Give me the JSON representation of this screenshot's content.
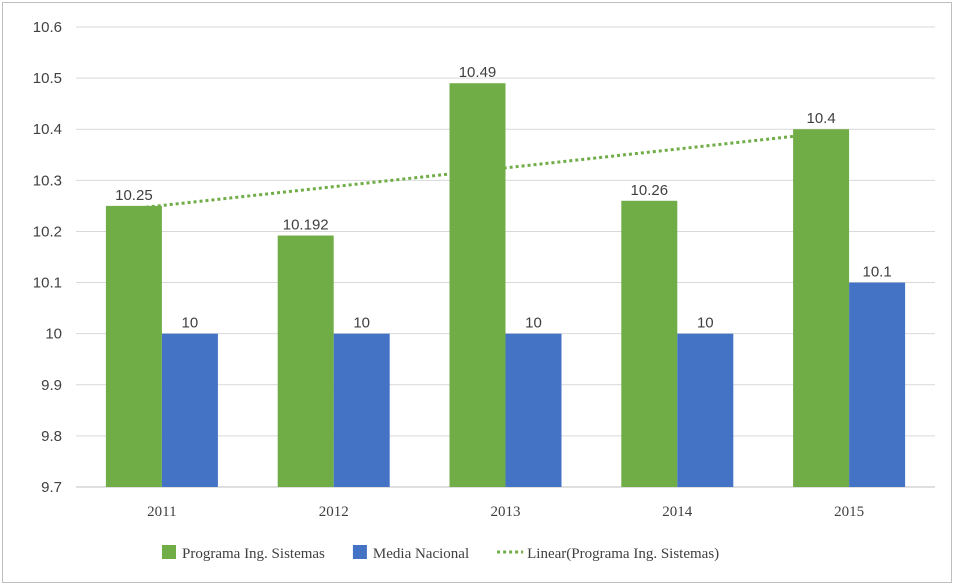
{
  "chart_data": {
    "type": "bar",
    "categories": [
      "2011",
      "2012",
      "2013",
      "2014",
      "2015"
    ],
    "series": [
      {
        "name": "Programa Ing. Sistemas",
        "values": [
          10.25,
          10.192,
          10.49,
          10.26,
          10.4
        ],
        "labels": [
          "10.25",
          "10.192",
          "10.49",
          "10.26",
          "10.4"
        ],
        "color": "#70ad47"
      },
      {
        "name": "Media Nacional",
        "values": [
          10,
          10,
          10,
          10,
          10.1
        ],
        "labels": [
          "10",
          "10",
          "10",
          "10",
          "10.1"
        ],
        "color": "#4472c4"
      }
    ],
    "trendline": {
      "name": "Linear(Programa Ing. Sistemas)",
      "of_series": "Programa Ing. Sistemas",
      "type": "linear",
      "color": "#70ad47",
      "style": "dotted"
    },
    "ylim": [
      9.7,
      10.6
    ],
    "yticks": [
      "9.7",
      "9.8",
      "9.9",
      "10",
      "10.1",
      "10.2",
      "10.3",
      "10.4",
      "10.5",
      "10.6"
    ],
    "grid": true,
    "legend": "bottom",
    "title": "",
    "xlabel": "",
    "ylabel": ""
  }
}
